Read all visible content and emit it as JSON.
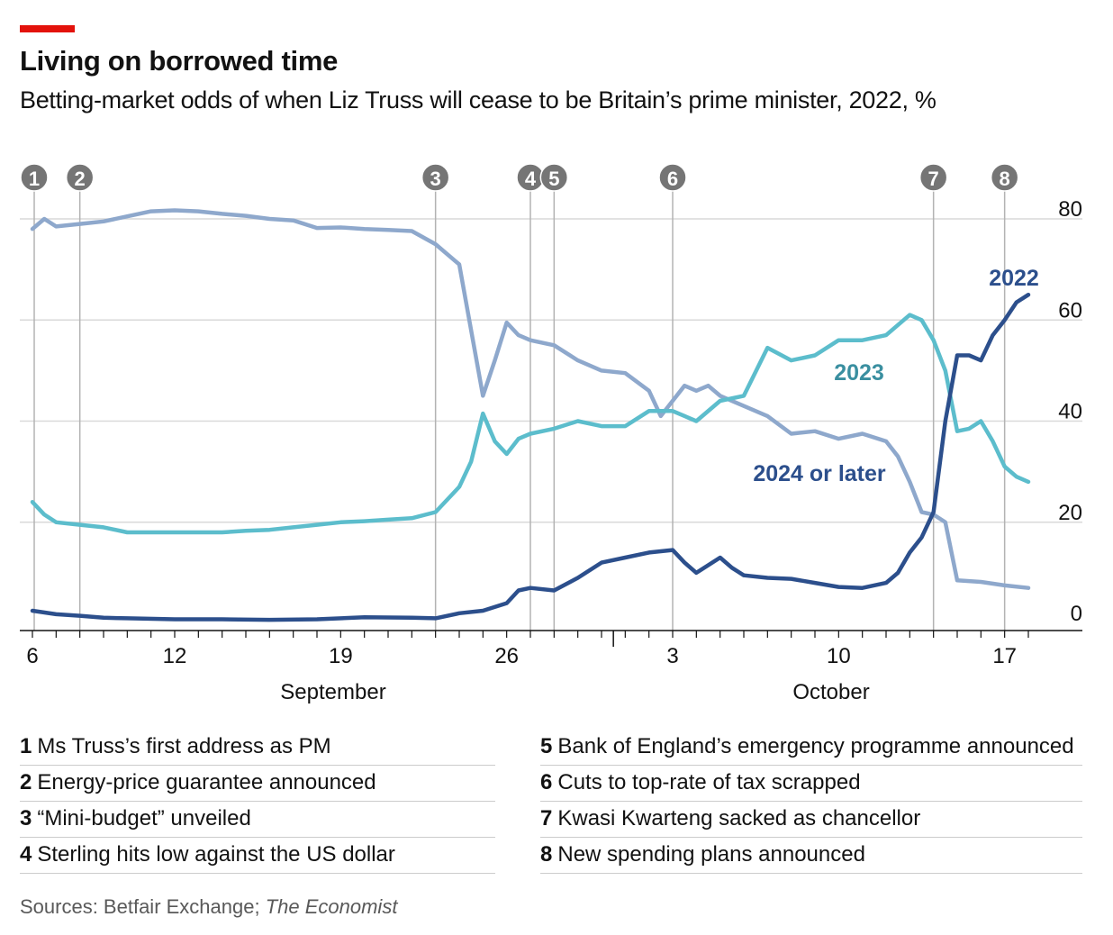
{
  "title": "Living on borrowed time",
  "subtitle": "Betting-market odds of when Liz Truss will cease to be Britain’s prime minister, 2022, %",
  "colors": {
    "accent_red": "#e3120b",
    "series_2024": "#8ea8cc",
    "series_2023": "#5cbdcc",
    "series_2022": "#2c4f8c",
    "event_marker": "#999999"
  },
  "chart_data": {
    "type": "line",
    "x_unit": "date, 2022",
    "y_unit": "%",
    "ylim": [
      0,
      80
    ],
    "y_ticks": [
      0,
      20,
      40,
      60,
      80
    ],
    "xlim": [
      "2022-09-06",
      "2022-10-18"
    ],
    "x_tick_labels": [
      {
        "date": "2022-09-06",
        "label": "6"
      },
      {
        "date": "2022-09-12",
        "label": "12"
      },
      {
        "date": "2022-09-19",
        "label": "19"
      },
      {
        "date": "2022-09-26",
        "label": "26"
      },
      {
        "date": "2022-10-03",
        "label": "3"
      },
      {
        "date": "2022-10-10",
        "label": "10"
      },
      {
        "date": "2022-10-17",
        "label": "17"
      }
    ],
    "month_labels": [
      {
        "label": "September",
        "date": "2022-09-18"
      },
      {
        "label": "October",
        "date": "2022-10-09"
      }
    ],
    "grid": "horizontal",
    "events": [
      {
        "number": "1",
        "date": "2022-09-06",
        "description": "Ms Truss’s first address as PM"
      },
      {
        "number": "2",
        "date": "2022-09-08",
        "description": "Energy-price guarantee announced"
      },
      {
        "number": "3",
        "date": "2022-09-23",
        "description": "“Mini-budget” unveiled"
      },
      {
        "number": "4",
        "date": "2022-09-27",
        "description": "Sterling hits low against the US dollar"
      },
      {
        "number": "5",
        "date": "2022-09-28",
        "description": "Bank of England’s emergency programme announced"
      },
      {
        "number": "6",
        "date": "2022-10-03",
        "description": "Cuts to top-rate of tax scrapped"
      },
      {
        "number": "7",
        "date": "2022-10-14",
        "description": "Kwasi Kwarteng sacked as chancellor"
      },
      {
        "number": "8",
        "date": "2022-10-17",
        "description": "New spending plans announced"
      }
    ],
    "series": [
      {
        "name": "2024 or later",
        "color": "#8ea8cc",
        "points": [
          [
            "2022-09-06",
            78
          ],
          [
            "2022-09-06T12:00",
            80
          ],
          [
            "2022-09-07",
            78.5
          ],
          [
            "2022-09-08",
            79
          ],
          [
            "2022-09-09",
            79.5
          ],
          [
            "2022-09-10",
            80.5
          ],
          [
            "2022-09-11",
            81.5
          ],
          [
            "2022-09-12",
            81.7
          ],
          [
            "2022-09-13",
            81.5
          ],
          [
            "2022-09-14",
            81
          ],
          [
            "2022-09-15",
            80.6
          ],
          [
            "2022-09-16",
            80
          ],
          [
            "2022-09-17",
            79.7
          ],
          [
            "2022-09-18",
            78.2
          ],
          [
            "2022-09-19",
            78.3
          ],
          [
            "2022-09-20",
            78
          ],
          [
            "2022-09-21",
            77.8
          ],
          [
            "2022-09-22",
            77.6
          ],
          [
            "2022-09-23",
            75
          ],
          [
            "2022-09-24",
            71
          ],
          [
            "2022-09-25",
            45
          ],
          [
            "2022-09-25T12:00",
            52
          ],
          [
            "2022-09-26",
            59.5
          ],
          [
            "2022-09-26T12:00",
            57
          ],
          [
            "2022-09-27",
            56
          ],
          [
            "2022-09-28",
            55
          ],
          [
            "2022-09-29",
            52
          ],
          [
            "2022-09-30",
            50
          ],
          [
            "2022-10-01",
            49.5
          ],
          [
            "2022-10-02",
            46
          ],
          [
            "2022-10-02T12:00",
            41
          ],
          [
            "2022-10-03",
            44
          ],
          [
            "2022-10-03T12:00",
            47
          ],
          [
            "2022-10-04",
            46
          ],
          [
            "2022-10-04T12:00",
            47
          ],
          [
            "2022-10-05",
            45
          ],
          [
            "2022-10-06",
            43
          ],
          [
            "2022-10-07",
            41
          ],
          [
            "2022-10-08",
            37.5
          ],
          [
            "2022-10-09",
            38
          ],
          [
            "2022-10-10",
            36.5
          ],
          [
            "2022-10-11",
            37.5
          ],
          [
            "2022-10-12",
            36
          ],
          [
            "2022-10-12T12:00",
            33
          ],
          [
            "2022-10-13",
            28
          ],
          [
            "2022-10-13T12:00",
            22
          ],
          [
            "2022-10-14",
            21.5
          ],
          [
            "2022-10-14T12:00",
            20
          ],
          [
            "2022-10-15",
            8.5
          ],
          [
            "2022-10-16",
            8.2
          ],
          [
            "2022-10-17",
            7.5
          ],
          [
            "2022-10-18",
            7
          ]
        ]
      },
      {
        "name": "2023",
        "color": "#5cbdcc",
        "points": [
          [
            "2022-09-06",
            24
          ],
          [
            "2022-09-06T12:00",
            21.5
          ],
          [
            "2022-09-07",
            20
          ],
          [
            "2022-09-08",
            19.5
          ],
          [
            "2022-09-09",
            19
          ],
          [
            "2022-09-10",
            18
          ],
          [
            "2022-09-11",
            18
          ],
          [
            "2022-09-12",
            18
          ],
          [
            "2022-09-13",
            18
          ],
          [
            "2022-09-14",
            18
          ],
          [
            "2022-09-15",
            18.3
          ],
          [
            "2022-09-16",
            18.5
          ],
          [
            "2022-09-17",
            19
          ],
          [
            "2022-09-18",
            19.5
          ],
          [
            "2022-09-19",
            20
          ],
          [
            "2022-09-20",
            20.2
          ],
          [
            "2022-09-21",
            20.5
          ],
          [
            "2022-09-22",
            20.8
          ],
          [
            "2022-09-23",
            22
          ],
          [
            "2022-09-24",
            27
          ],
          [
            "2022-09-24T12:00",
            32
          ],
          [
            "2022-09-25",
            41.5
          ],
          [
            "2022-09-25T12:00",
            36
          ],
          [
            "2022-09-26",
            33.5
          ],
          [
            "2022-09-26T12:00",
            36.5
          ],
          [
            "2022-09-27",
            37.5
          ],
          [
            "2022-09-28",
            38.5
          ],
          [
            "2022-09-29",
            40
          ],
          [
            "2022-09-30",
            39
          ],
          [
            "2022-10-01",
            39
          ],
          [
            "2022-10-02",
            42
          ],
          [
            "2022-10-03",
            42
          ],
          [
            "2022-10-04",
            40
          ],
          [
            "2022-10-05",
            44
          ],
          [
            "2022-10-06",
            45
          ],
          [
            "2022-10-07",
            54.5
          ],
          [
            "2022-10-08",
            52
          ],
          [
            "2022-10-09",
            53
          ],
          [
            "2022-10-10",
            56
          ],
          [
            "2022-10-11",
            56
          ],
          [
            "2022-10-12",
            57
          ],
          [
            "2022-10-13",
            61
          ],
          [
            "2022-10-13T12:00",
            60
          ],
          [
            "2022-10-14",
            56
          ],
          [
            "2022-10-14T12:00",
            50
          ],
          [
            "2022-10-15",
            38
          ],
          [
            "2022-10-15T12:00",
            38.5
          ],
          [
            "2022-10-16",
            40
          ],
          [
            "2022-10-16T12:00",
            36
          ],
          [
            "2022-10-17",
            31
          ],
          [
            "2022-10-17T12:00",
            29
          ],
          [
            "2022-10-18",
            28
          ]
        ]
      },
      {
        "name": "2022",
        "color": "#2c4f8c",
        "points": [
          [
            "2022-09-06",
            2.5
          ],
          [
            "2022-09-07",
            1.8
          ],
          [
            "2022-09-08",
            1.5
          ],
          [
            "2022-09-09",
            1.1
          ],
          [
            "2022-09-10",
            1.0
          ],
          [
            "2022-09-12",
            0.8
          ],
          [
            "2022-09-14",
            0.8
          ],
          [
            "2022-09-16",
            0.7
          ],
          [
            "2022-09-18",
            0.8
          ],
          [
            "2022-09-20",
            1.2
          ],
          [
            "2022-09-22",
            1.1
          ],
          [
            "2022-09-23",
            1.0
          ],
          [
            "2022-09-24",
            2
          ],
          [
            "2022-09-25",
            2.5
          ],
          [
            "2022-09-26",
            4
          ],
          [
            "2022-09-26T12:00",
            6.5
          ],
          [
            "2022-09-27",
            7
          ],
          [
            "2022-09-28",
            6.5
          ],
          [
            "2022-09-29",
            9
          ],
          [
            "2022-09-30",
            12
          ],
          [
            "2022-10-01",
            13
          ],
          [
            "2022-10-02",
            14
          ],
          [
            "2022-10-03",
            14.5
          ],
          [
            "2022-10-03T12:00",
            12
          ],
          [
            "2022-10-04",
            10
          ],
          [
            "2022-10-05",
            13
          ],
          [
            "2022-10-05T12:00",
            11
          ],
          [
            "2022-10-06",
            9.5
          ],
          [
            "2022-10-07",
            9
          ],
          [
            "2022-10-08",
            8.8
          ],
          [
            "2022-10-09",
            8
          ],
          [
            "2022-10-10",
            7.2
          ],
          [
            "2022-10-11",
            7.0
          ],
          [
            "2022-10-12",
            8
          ],
          [
            "2022-10-12T12:00",
            10
          ],
          [
            "2022-10-13",
            14
          ],
          [
            "2022-10-13T12:00",
            17
          ],
          [
            "2022-10-14",
            22
          ],
          [
            "2022-10-14T12:00",
            40
          ],
          [
            "2022-10-15",
            53
          ],
          [
            "2022-10-15T12:00",
            53
          ],
          [
            "2022-10-16",
            52
          ],
          [
            "2022-10-16T12:00",
            57
          ],
          [
            "2022-10-17",
            60
          ],
          [
            "2022-10-17T12:00",
            63.5
          ],
          [
            "2022-10-18",
            65
          ]
        ]
      }
    ],
    "series_labels": [
      {
        "name": "2022",
        "text": "2022"
      },
      {
        "name": "2023",
        "text": "2023"
      },
      {
        "name": "2024 or later",
        "text": "2024 or later"
      }
    ]
  },
  "source": {
    "prefix": "Sources: Betfair Exchange; ",
    "italic": "The Economist"
  }
}
